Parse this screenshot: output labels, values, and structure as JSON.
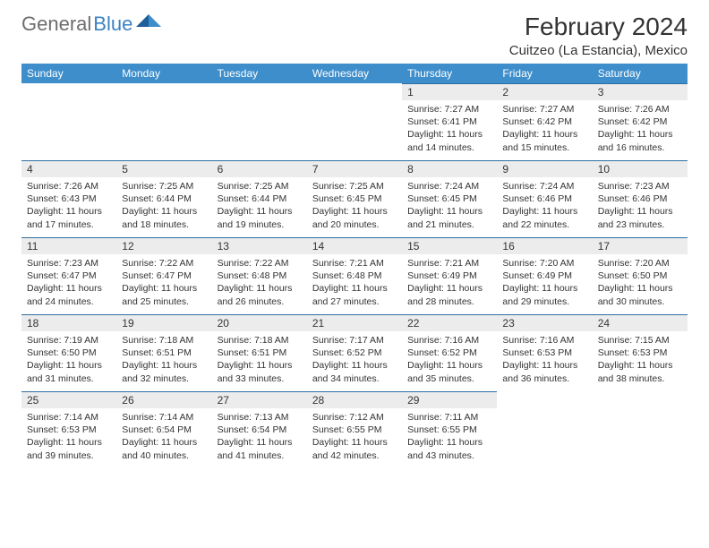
{
  "logo": {
    "word1": "General",
    "word2": "Blue"
  },
  "title": "February 2024",
  "location": "Cuitzeo (La Estancia), Mexico",
  "colors": {
    "headerBg": "#3e8ecb",
    "headerText": "#ffffff",
    "dayNumBg": "#ececec",
    "ruleLine": "#2f6ea3",
    "bodyText": "#333333",
    "logoGray": "#6d6d6d",
    "logoBlue": "#3b82c4"
  },
  "typography": {
    "titleSize": 28,
    "locationSize": 15,
    "weekdaySize": 12,
    "dayNumSize": 12,
    "cellTextSize": 10.5
  },
  "weekdays": [
    "Sunday",
    "Monday",
    "Tuesday",
    "Wednesday",
    "Thursday",
    "Friday",
    "Saturday"
  ],
  "grid": {
    "startOffset": 4,
    "daysInMonth": 29
  },
  "days": {
    "1": {
      "sunrise": "7:27 AM",
      "sunset": "6:41 PM",
      "dlH": 11,
      "dlM": 14
    },
    "2": {
      "sunrise": "7:27 AM",
      "sunset": "6:42 PM",
      "dlH": 11,
      "dlM": 15
    },
    "3": {
      "sunrise": "7:26 AM",
      "sunset": "6:42 PM",
      "dlH": 11,
      "dlM": 16
    },
    "4": {
      "sunrise": "7:26 AM",
      "sunset": "6:43 PM",
      "dlH": 11,
      "dlM": 17
    },
    "5": {
      "sunrise": "7:25 AM",
      "sunset": "6:44 PM",
      "dlH": 11,
      "dlM": 18
    },
    "6": {
      "sunrise": "7:25 AM",
      "sunset": "6:44 PM",
      "dlH": 11,
      "dlM": 19
    },
    "7": {
      "sunrise": "7:25 AM",
      "sunset": "6:45 PM",
      "dlH": 11,
      "dlM": 20
    },
    "8": {
      "sunrise": "7:24 AM",
      "sunset": "6:45 PM",
      "dlH": 11,
      "dlM": 21
    },
    "9": {
      "sunrise": "7:24 AM",
      "sunset": "6:46 PM",
      "dlH": 11,
      "dlM": 22
    },
    "10": {
      "sunrise": "7:23 AM",
      "sunset": "6:46 PM",
      "dlH": 11,
      "dlM": 23
    },
    "11": {
      "sunrise": "7:23 AM",
      "sunset": "6:47 PM",
      "dlH": 11,
      "dlM": 24
    },
    "12": {
      "sunrise": "7:22 AM",
      "sunset": "6:47 PM",
      "dlH": 11,
      "dlM": 25
    },
    "13": {
      "sunrise": "7:22 AM",
      "sunset": "6:48 PM",
      "dlH": 11,
      "dlM": 26
    },
    "14": {
      "sunrise": "7:21 AM",
      "sunset": "6:48 PM",
      "dlH": 11,
      "dlM": 27
    },
    "15": {
      "sunrise": "7:21 AM",
      "sunset": "6:49 PM",
      "dlH": 11,
      "dlM": 28
    },
    "16": {
      "sunrise": "7:20 AM",
      "sunset": "6:49 PM",
      "dlH": 11,
      "dlM": 29
    },
    "17": {
      "sunrise": "7:20 AM",
      "sunset": "6:50 PM",
      "dlH": 11,
      "dlM": 30
    },
    "18": {
      "sunrise": "7:19 AM",
      "sunset": "6:50 PM",
      "dlH": 11,
      "dlM": 31
    },
    "19": {
      "sunrise": "7:18 AM",
      "sunset": "6:51 PM",
      "dlH": 11,
      "dlM": 32
    },
    "20": {
      "sunrise": "7:18 AM",
      "sunset": "6:51 PM",
      "dlH": 11,
      "dlM": 33
    },
    "21": {
      "sunrise": "7:17 AM",
      "sunset": "6:52 PM",
      "dlH": 11,
      "dlM": 34
    },
    "22": {
      "sunrise": "7:16 AM",
      "sunset": "6:52 PM",
      "dlH": 11,
      "dlM": 35
    },
    "23": {
      "sunrise": "7:16 AM",
      "sunset": "6:53 PM",
      "dlH": 11,
      "dlM": 36
    },
    "24": {
      "sunrise": "7:15 AM",
      "sunset": "6:53 PM",
      "dlH": 11,
      "dlM": 38
    },
    "25": {
      "sunrise": "7:14 AM",
      "sunset": "6:53 PM",
      "dlH": 11,
      "dlM": 39
    },
    "26": {
      "sunrise": "7:14 AM",
      "sunset": "6:54 PM",
      "dlH": 11,
      "dlM": 40
    },
    "27": {
      "sunrise": "7:13 AM",
      "sunset": "6:54 PM",
      "dlH": 11,
      "dlM": 41
    },
    "28": {
      "sunrise": "7:12 AM",
      "sunset": "6:55 PM",
      "dlH": 11,
      "dlM": 42
    },
    "29": {
      "sunrise": "7:11 AM",
      "sunset": "6:55 PM",
      "dlH": 11,
      "dlM": 43
    }
  },
  "labels": {
    "sunrise": "Sunrise:",
    "sunset": "Sunset:",
    "daylight": "Daylight:",
    "hours": "hours",
    "and": "and",
    "minutes": "minutes."
  }
}
